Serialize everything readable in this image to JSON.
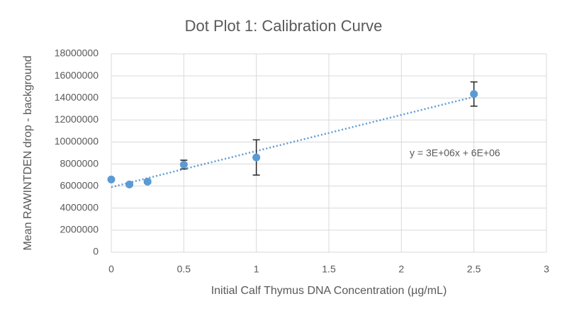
{
  "chart_data": {
    "type": "scatter",
    "title": "Dot Plot 1: Calibration Curve",
    "x_label": "Initial Calf Thymus DNA Concentration (µg/mL)",
    "y_label": "Mean RAWINTDEN drop - background",
    "series": [
      {
        "name": "Mean RAWINTDEN drop - background",
        "color": "#5b9bd5",
        "x": [
          0,
          0.125,
          0.25,
          0.5,
          1,
          2.5
        ],
        "values": [
          6600000,
          6150000,
          6400000,
          7950000,
          8600000,
          14350000
        ],
        "errors": [
          100000,
          100000,
          150000,
          400000,
          1600000,
          1100000
        ]
      }
    ],
    "trendline": {
      "color": "#5b9bd5",
      "x": [
        0,
        2.5
      ],
      "values": [
        5900000,
        14100000
      ],
      "label": "y = 3E+06x + 6E+06"
    },
    "xlim": [
      0,
      3
    ],
    "xticks": [
      0,
      0.5,
      1,
      1.5,
      2,
      2.5,
      3
    ],
    "ylim": [
      0,
      18000000
    ],
    "yticks": [
      0,
      2000000,
      4000000,
      6000000,
      8000000,
      10000000,
      12000000,
      14000000,
      16000000,
      18000000
    ],
    "grid": true
  }
}
